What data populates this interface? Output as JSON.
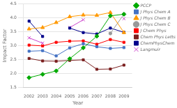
{
  "chart_data": {
    "type": "line",
    "xlabel": "Year",
    "ylabel": "Impact Factor",
    "x": [
      2002,
      2003,
      2004,
      2005,
      2006,
      2007,
      2008,
      2009
    ],
    "series": [
      {
        "name": "PCCP",
        "color": "#00aa00",
        "marker": "diamond",
        "values": [
          1.85,
          1.97,
          2.09,
          2.53,
          2.92,
          3.34,
          4.07,
          4.13
        ]
      },
      {
        "name": "J Phys Chem A",
        "color": "#4472c4",
        "marker": "square",
        "values": [
          2.8,
          2.82,
          2.63,
          2.92,
          3.07,
          2.96,
          2.9,
          2.93
        ]
      },
      {
        "name": "J Phys Chem B",
        "color": "#ff9900",
        "marker": "triangle",
        "values": [
          3.6,
          3.65,
          3.83,
          4.04,
          4.1,
          4.09,
          4.19,
          3.47
        ]
      },
      {
        "name": "J Phys Chem C",
        "color": "#999999",
        "marker": "circle",
        "values": [
          null,
          null,
          null,
          null,
          null,
          null,
          3.44,
          4.13
        ]
      },
      {
        "name": "J Chem Phys",
        "color": "#ff0000",
        "marker": "square",
        "values": [
          3.02,
          2.99,
          3.12,
          3.16,
          3.17,
          3.05,
          3.22,
          3.12
        ]
      },
      {
        "name": "Chem Phys Letts",
        "color": "#7b2020",
        "marker": "square",
        "values": [
          2.54,
          2.45,
          2.44,
          2.47,
          2.49,
          2.15,
          2.16,
          2.3
        ]
      },
      {
        "name": "ChemPhysChem",
        "color": "#00008b",
        "marker": "square",
        "values": [
          3.88,
          3.33,
          null,
          3.63,
          3.47,
          3.42,
          3.63,
          3.48
        ]
      },
      {
        "name": "Langmuir",
        "color": "#cc44cc",
        "marker": "x",
        "values": [
          3.28,
          3.09,
          null,
          3.65,
          3.93,
          null,
          null,
          3.97
        ]
      }
    ],
    "xlim": [
      2001.6,
      2009.6
    ],
    "xticks": [
      2002,
      2003,
      2004,
      2005,
      2006,
      2007,
      2008,
      2009
    ],
    "ylim": [
      1.5,
      4.5
    ],
    "yticks": [
      1.5,
      {
        "value": 2.0,
        "label": "2.0"
      },
      2.5,
      {
        "value": 3.0,
        "label": "3.0"
      },
      3.5,
      {
        "value": 4.0,
        "label": "4.0"
      },
      4.5
    ],
    "grid": "y",
    "legend": "right"
  }
}
